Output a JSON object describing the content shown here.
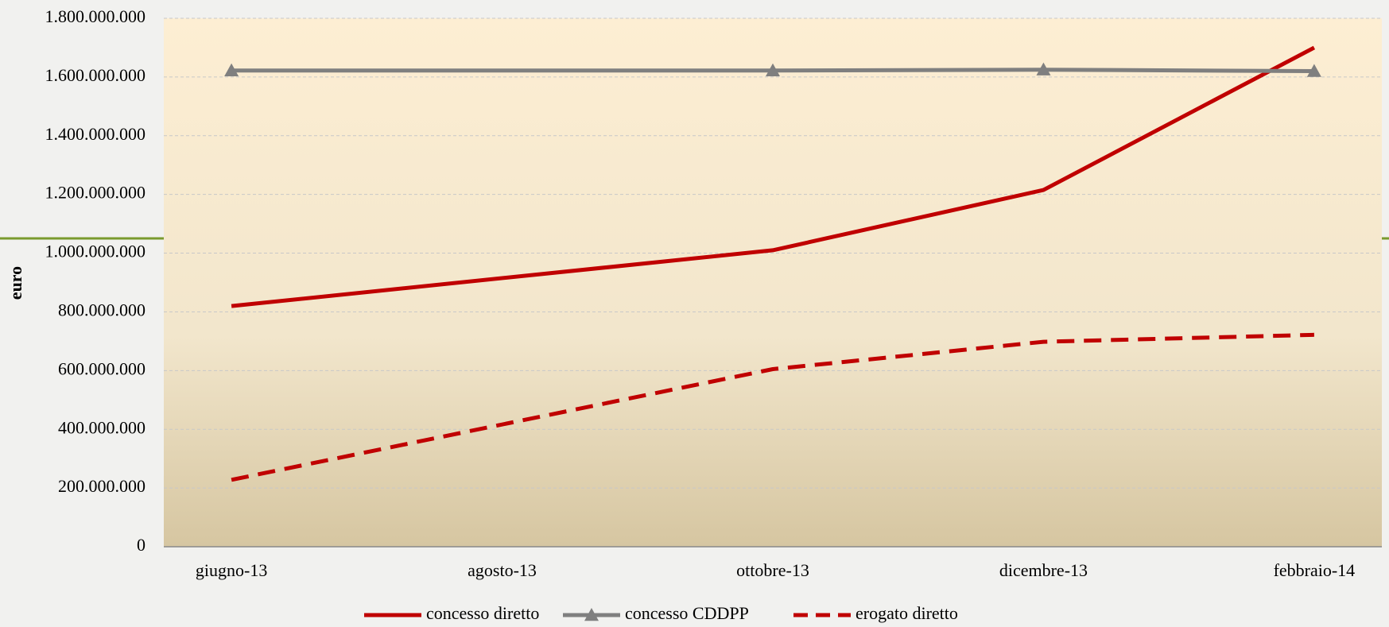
{
  "chart_data": {
    "type": "line",
    "y_label": "euro",
    "x": [
      "2013-06",
      "2013-10",
      "2013-12",
      "2014-02"
    ],
    "xticks": [
      {
        "value": "2013-06",
        "label": "giugno-13"
      },
      {
        "value": "2013-08",
        "label": "agosto-13"
      },
      {
        "value": "2013-10",
        "label": "ottobre-13"
      },
      {
        "value": "2013-12",
        "label": "dicembre-13"
      },
      {
        "value": "2014-02",
        "label": "febbraio-14"
      }
    ],
    "ylim": [
      0,
      1800000000
    ],
    "yticks": [
      0,
      {
        "value": 200000000,
        "label": "200.000.000"
      },
      {
        "value": 400000000,
        "label": "400.000.000"
      },
      {
        "value": 600000000,
        "label": "600.000.000"
      },
      {
        "value": 800000000,
        "label": "800.000.000"
      },
      {
        "value": 1000000000,
        "label": "1.000.000.000"
      },
      {
        "value": 1200000000,
        "label": "1.200.000.000"
      },
      {
        "value": 1400000000,
        "label": "1.400.000.000"
      },
      {
        "value": 1600000000,
        "label": "1.600.000.000"
      },
      {
        "value": 1800000000,
        "label": "1.800.000.000"
      }
    ],
    "grid": true,
    "legend": "bottom",
    "series": [
      {
        "name": "concesso diretto",
        "color": "#c00000",
        "style": "solid",
        "marker": "none",
        "values": [
          820000000,
          1010000000,
          1215000000,
          1700000000
        ]
      },
      {
        "name": "concesso CDDPP",
        "color": "#7f7f7f",
        "style": "solid",
        "marker": "triangle",
        "values": [
          1622000000,
          1622000000,
          1625000000,
          1620000000
        ]
      },
      {
        "name": "erogato diretto",
        "color": "#c00000",
        "style": "dashed",
        "marker": "none",
        "values": [
          228000000,
          605000000,
          698000000,
          722000000
        ]
      }
    ]
  }
}
